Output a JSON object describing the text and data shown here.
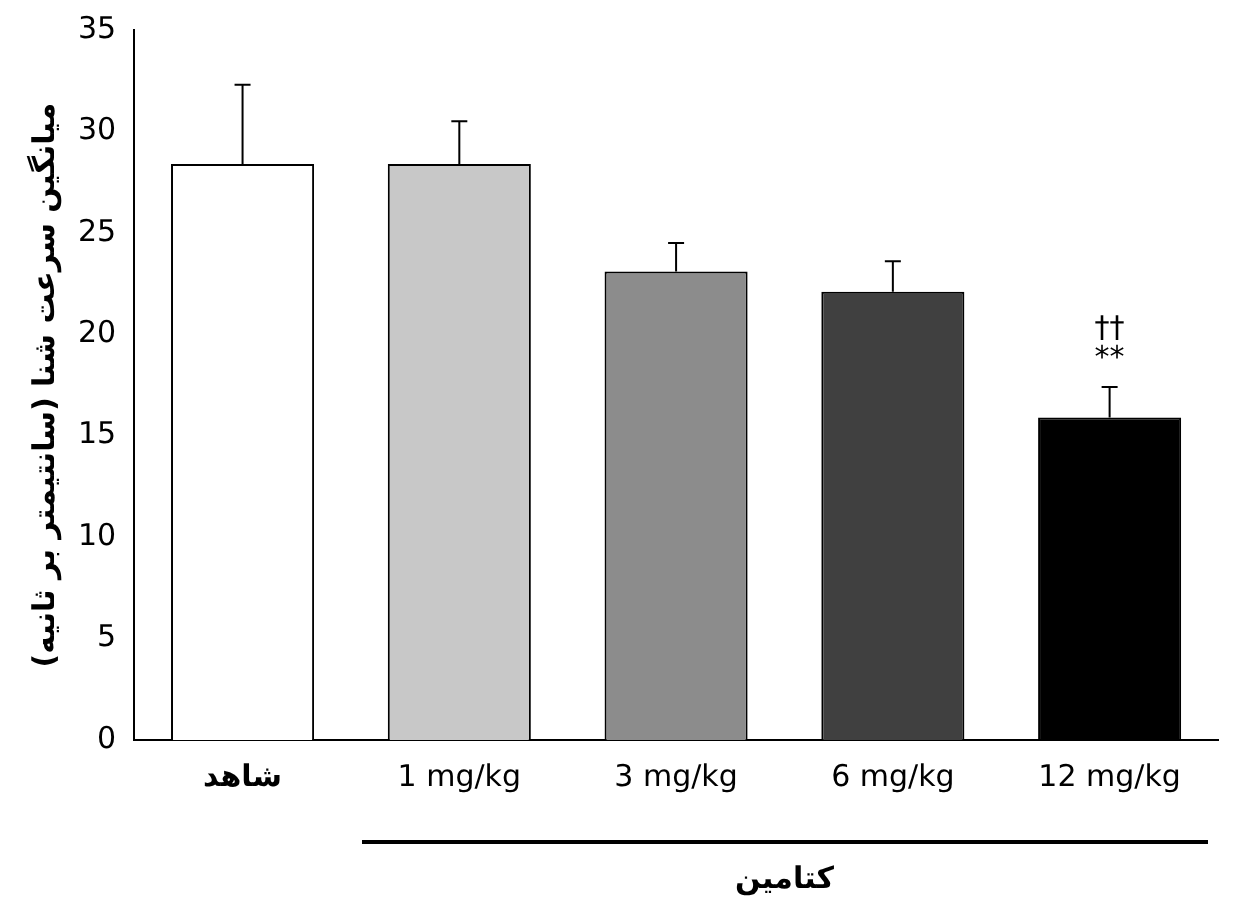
{
  "chart_data": {
    "type": "bar",
    "xlabel": "کتامین",
    "ylabel": "میانگین سرعت شنا (سانتیمتر بر ثانیه)",
    "categories": [
      "شاهد",
      "1 mg/kg",
      "3 mg/kg",
      "6 mg/kg",
      "12 mg/kg"
    ],
    "values": [
      28.4,
      28.4,
      23.1,
      22.1,
      15.9
    ],
    "errors": [
      [
        28.4,
        32.3
      ],
      [
        28.4,
        30.5
      ],
      [
        23.1,
        24.5
      ],
      [
        22.1,
        23.6
      ],
      [
        15.9,
        17.4
      ]
    ],
    "colors": [
      "#ffffff",
      "#c8c8c8",
      "#8c8c8c",
      "#404040",
      "#000000"
    ],
    "ylim": [
      0,
      35
    ],
    "yticks": [
      0,
      5,
      10,
      15,
      20,
      25,
      30,
      35
    ],
    "grid": false,
    "legend": false,
    "annotations": [
      "††",
      "**"
    ]
  }
}
